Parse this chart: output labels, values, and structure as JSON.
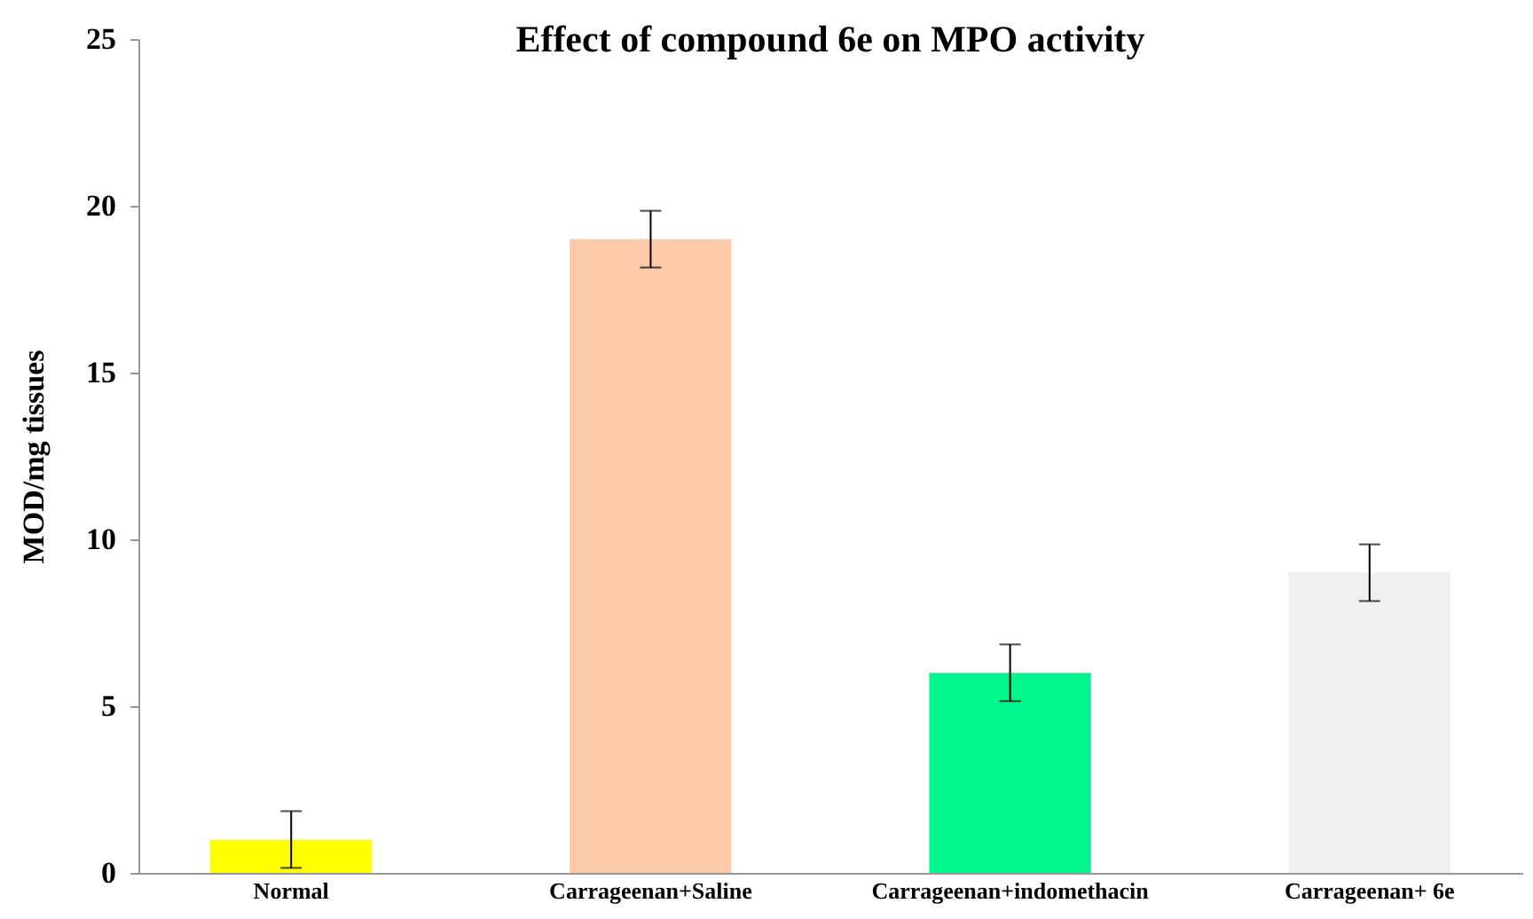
{
  "chart_data": {
    "type": "bar",
    "title": "Effect  of compound 6e on MPO activity",
    "ylabel": "MOD/mg tissues",
    "categories": [
      "Normal",
      "Carrageenan+Saline",
      "Carrageenan+indomethacin",
      "Carrageenan+ 6e"
    ],
    "values": [
      1,
      19,
      6,
      9
    ],
    "colors": [
      "#ffff00",
      "#fccaa9",
      "#00f58c",
      "#efefef"
    ],
    "errors": [
      0.85,
      0.85,
      0.85,
      0.85
    ],
    "ylim": [
      0,
      25
    ],
    "yticks": [
      0,
      5,
      10,
      15,
      20,
      25
    ],
    "grid": false
  }
}
